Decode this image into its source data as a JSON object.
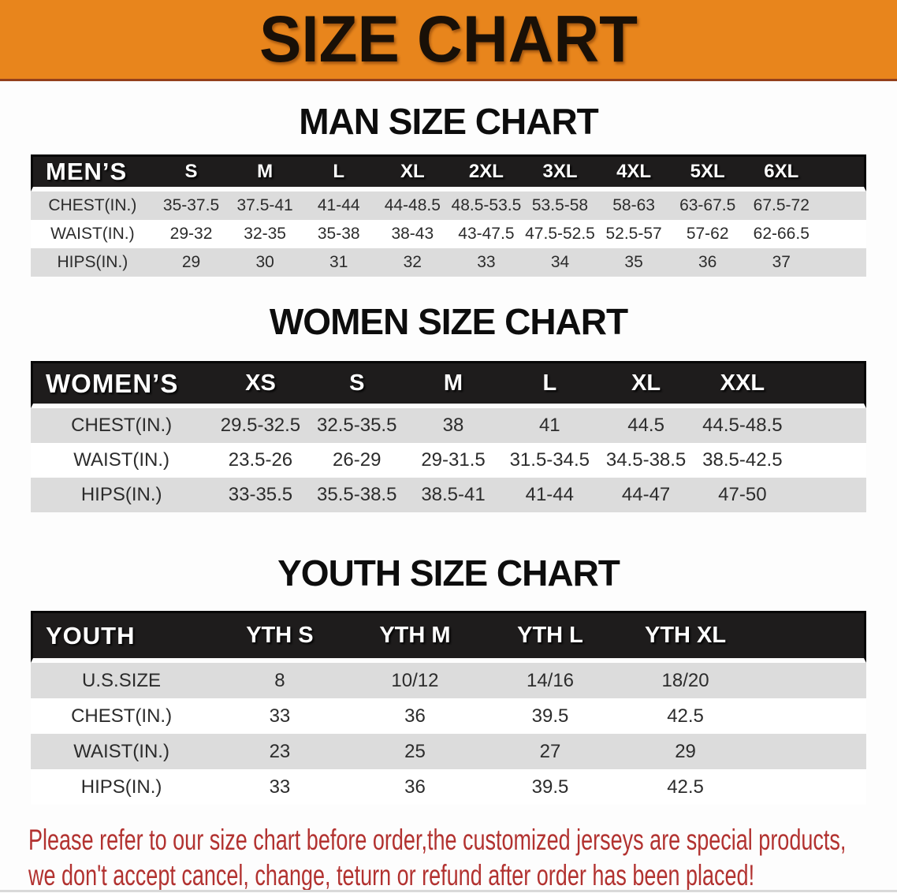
{
  "banner": {
    "title": "SIZE CHART"
  },
  "colors": {
    "banner_bg": "#e8851c",
    "table_header_bg": "#1e1c1c",
    "row_stripe": "#dcdcdc",
    "note_red": "#b23230"
  },
  "man": {
    "heading": "MAN SIZE CHART",
    "table": {
      "label": "MEN’S",
      "sizes": [
        "S",
        "M",
        "L",
        "XL",
        "2XL",
        "3XL",
        "4XL",
        "5XL",
        "6XL"
      ],
      "rows": [
        {
          "label": "CHEST(IN.)",
          "values": [
            "35-37.5",
            "37.5-41",
            "41-44",
            "44-48.5",
            "48.5-53.5",
            "53.5-58",
            "58-63",
            "63-67.5",
            "67.5-72"
          ]
        },
        {
          "label": "WAIST(IN.)",
          "values": [
            "29-32",
            "32-35",
            "35-38",
            "38-43",
            "43-47.5",
            "47.5-52.5",
            "52.5-57",
            "57-62",
            "62-66.5"
          ]
        },
        {
          "label": "HIPS(IN.)",
          "values": [
            "29",
            "30",
            "31",
            "32",
            "33",
            "34",
            "35",
            "36",
            "37"
          ]
        }
      ]
    }
  },
  "women": {
    "heading": "WOMEN SIZE CHART",
    "table": {
      "label": "WOMEN’S",
      "sizes": [
        "XS",
        "S",
        "M",
        "L",
        "XL",
        "XXL"
      ],
      "rows": [
        {
          "label": "CHEST(IN.)",
          "values": [
            "29.5-32.5",
            "32.5-35.5",
            "38",
            "41",
            "44.5",
            "44.5-48.5"
          ]
        },
        {
          "label": "WAIST(IN.)",
          "values": [
            "23.5-26",
            "26-29",
            "29-31.5",
            "31.5-34.5",
            "34.5-38.5",
            "38.5-42.5"
          ]
        },
        {
          "label": "HIPS(IN.)",
          "values": [
            "33-35.5",
            "35.5-38.5",
            "38.5-41",
            "41-44",
            "44-47",
            "47-50"
          ]
        }
      ]
    }
  },
  "youth": {
    "heading": "YOUTH SIZE CHART",
    "table": {
      "label": "YOUTH",
      "sizes": [
        "YTH S",
        "YTH M",
        "YTH L",
        "YTH XL"
      ],
      "rows": [
        {
          "label": "U.S.SIZE",
          "values": [
            "8",
            "10/12",
            "14/16",
            "18/20"
          ]
        },
        {
          "label": "CHEST(IN.)",
          "values": [
            "33",
            "36",
            "39.5",
            "42.5"
          ]
        },
        {
          "label": "WAIST(IN.)",
          "values": [
            "23",
            "25",
            "27",
            "29"
          ]
        },
        {
          "label": "HIPS(IN.)",
          "values": [
            "33",
            "36",
            "39.5",
            "42.5"
          ]
        }
      ]
    }
  },
  "note": {
    "line1": "Please refer to our size chart before order,the customized jerseys are special products,",
    "line2": "we don't accept cancel, change, teturn or refund after order has been placed!"
  }
}
